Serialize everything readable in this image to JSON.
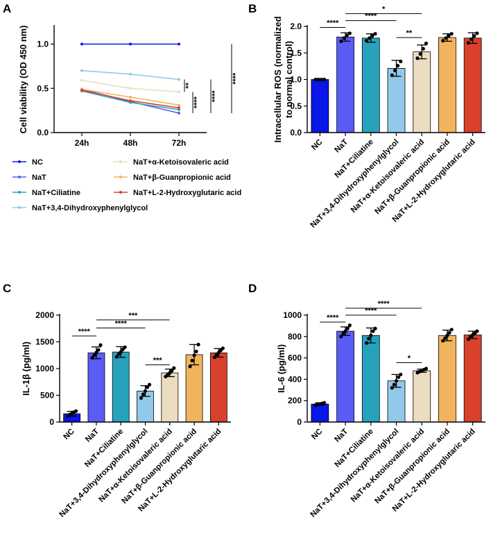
{
  "panels": {
    "A": "A",
    "B": "B",
    "C": "C",
    "D": "D"
  },
  "colors": {
    "NC": "#0a16e6",
    "NaT": "#5a5cf5",
    "NaT+Ciliatine": "#27a2bd",
    "NaT+3,4-Dihydroxyphenylglycol": "#92c9e9",
    "NaT+α-Ketoisovaleric acid": "#ecdcc0",
    "NaT+β-Guanpropionic acid": "#f2b35e",
    "NaT+L-2-Hydroxyglutaric acid": "#d8412c"
  },
  "chart_data": [
    {
      "panel": "A",
      "type": "line",
      "ylabel": "Cell viability (OD 450 nm)",
      "x": [
        "24h",
        "48h",
        "72h"
      ],
      "ylim": [
        0.0,
        1.2
      ],
      "yticks": [
        "0.0",
        "0.5",
        "1.0"
      ],
      "ytick_values": [
        0.0,
        0.5,
        1.0
      ],
      "series": [
        {
          "name": "NC",
          "values": [
            1.0,
            1.0,
            1.0
          ]
        },
        {
          "name": "NaT",
          "values": [
            0.49,
            0.35,
            0.22
          ]
        },
        {
          "name": "NaT+Ciliatine",
          "values": [
            0.47,
            0.34,
            0.26
          ]
        },
        {
          "name": "NaT+3,4-Dihydroxyphenylglycol",
          "values": [
            0.7,
            0.66,
            0.6
          ]
        },
        {
          "name": "NaT+α-Ketoisovaleric acid",
          "values": [
            0.59,
            0.5,
            0.46
          ]
        },
        {
          "name": "NaT+β-Guanpropionic acid",
          "values": [
            0.49,
            0.4,
            0.31
          ]
        },
        {
          "name": "NaT+L-2-Hydroxyglutaric acid",
          "values": [
            0.48,
            0.36,
            0.28
          ]
        }
      ],
      "legend_left": [
        "NC",
        "NaT",
        "NaT+Ciliatine",
        "NaT+3,4-Dihydroxyphenylglycol"
      ],
      "legend_right": [
        "NaT+α-Ketoisovaleric acid",
        "NaT+β-Guanpropionic acid",
        "NaT+L-2-Hydroxyglutaric acid"
      ],
      "significance": [
        {
          "from": 0.6,
          "to": 0.46,
          "label": "**"
        },
        {
          "from": 0.46,
          "to": 0.22,
          "label": "****"
        },
        {
          "from": 0.6,
          "to": 0.22,
          "label": "****"
        },
        {
          "from": 1.0,
          "to": 0.22,
          "label": "****"
        }
      ]
    },
    {
      "panel": "B",
      "type": "bar",
      "ylabel": "Intracellular ROS (normalized to normal control)",
      "ylabel_lines": [
        "Intracellular ROS (normalized",
        "to normal control)"
      ],
      "categories": [
        "NC",
        "NaT",
        "NaT+Ciliatine",
        "NaT+3,4-Dihydroxyphenylglycol",
        "NaT+α-Ketoisovaleric acid",
        "NaT+β-Guanpropionic acid",
        "NaT+L-2-Hydroxyglutaric acid"
      ],
      "values": [
        1.0,
        1.8,
        1.78,
        1.21,
        1.52,
        1.79,
        1.78
      ],
      "errors": [
        0.0,
        0.08,
        0.08,
        0.15,
        0.13,
        0.07,
        0.1
      ],
      "points": [
        [
          1.0,
          1.0,
          1.0,
          1.0
        ],
        [
          1.72,
          1.78,
          1.83,
          1.87
        ],
        [
          1.73,
          1.78,
          1.82,
          1.86
        ],
        [
          1.08,
          1.17,
          1.26,
          1.34
        ],
        [
          1.4,
          1.48,
          1.58,
          1.68
        ],
        [
          1.73,
          1.78,
          1.82,
          1.86
        ],
        [
          1.69,
          1.76,
          1.82,
          1.87
        ]
      ],
      "ylim": [
        0.0,
        2.0
      ],
      "yticks": [
        "0.0",
        "0.5",
        "1.0",
        "1.5",
        "2.0"
      ],
      "ytick_values": [
        0.0,
        0.5,
        1.0,
        1.5,
        2.0
      ],
      "significance": [
        {
          "a": 0,
          "b": 1,
          "label": "****",
          "y": 1.98
        },
        {
          "a": 1,
          "b": 3,
          "label": "****",
          "y": 2.11
        },
        {
          "a": 1,
          "b": 4,
          "label": "*",
          "y": 2.24
        },
        {
          "a": 3,
          "b": 4,
          "label": "**",
          "y": 1.79
        }
      ]
    },
    {
      "panel": "C",
      "type": "bar",
      "ylabel": "IL-1β (pg/ml)",
      "categories": [
        "NC",
        "NaT",
        "NaT+Ciliatine",
        "NaT+3,4-Dihydroxyphenylglycol",
        "NaT+α-Ketoisovaleric acid",
        "NaT+β-Guanpropionic acid",
        "NaT+L-2-Hydroxyglutaric acid"
      ],
      "values": [
        155,
        1295,
        1310,
        580,
        920,
        1260,
        1295
      ],
      "errors": [
        45,
        110,
        100,
        100,
        70,
        190,
        80
      ],
      "points": [
        [
          110,
          140,
          160,
          185,
          205
        ],
        [
          1200,
          1250,
          1300,
          1350,
          1440
        ],
        [
          1220,
          1270,
          1310,
          1360,
          1400
        ],
        [
          450,
          520,
          580,
          650,
          700
        ],
        [
          850,
          890,
          920,
          960,
          1010
        ],
        [
          1040,
          1150,
          1250,
          1320,
          1450
        ],
        [
          1210,
          1260,
          1300,
          1340,
          1380
        ]
      ],
      "ylim": [
        0,
        2000
      ],
      "yticks": [
        "0",
        "500",
        "1000",
        "1500",
        "2000"
      ],
      "ytick_values": [
        0,
        500,
        1000,
        1500,
        2000
      ],
      "significance": [
        {
          "a": 0,
          "b": 1,
          "label": "****",
          "y": 1610
        },
        {
          "a": 1,
          "b": 3,
          "label": "****",
          "y": 1760
        },
        {
          "a": 1,
          "b": 4,
          "label": "***",
          "y": 1910
        },
        {
          "a": 3,
          "b": 4,
          "label": "***",
          "y": 1070
        }
      ]
    },
    {
      "panel": "D",
      "type": "bar",
      "ylabel": "IL-6 (pg/ml)",
      "categories": [
        "NC",
        "NaT",
        "NaT+Ciliatine",
        "NaT+3,4-Dihydroxyphenylglycol",
        "NaT+α-Ketoisovaleric acid",
        "NaT+β-Guanpropionic acid",
        "NaT+L-2-Hydroxyglutaric acid"
      ],
      "values": [
        168,
        850,
        810,
        385,
        480,
        810,
        815
      ],
      "errors": [
        12,
        40,
        70,
        60,
        15,
        50,
        35
      ],
      "points": [
        [
          158,
          163,
          168,
          174,
          180
        ],
        [
          800,
          830,
          850,
          875,
          905
        ],
        [
          740,
          780,
          810,
          850,
          875
        ],
        [
          320,
          350,
          385,
          420,
          445
        ],
        [
          462,
          472,
          480,
          490,
          500
        ],
        [
          760,
          785,
          810,
          835,
          865
        ],
        [
          775,
          800,
          815,
          830,
          850
        ]
      ],
      "ylim": [
        0,
        1000
      ],
      "yticks": [
        "0",
        "200",
        "400",
        "600",
        "800",
        "1000"
      ],
      "ytick_values": [
        0,
        200,
        400,
        600,
        800,
        1000
      ],
      "significance": [
        {
          "a": 0,
          "b": 1,
          "label": "****",
          "y": 935
        },
        {
          "a": 1,
          "b": 3,
          "label": "****",
          "y": 1000
        },
        {
          "a": 1,
          "b": 4,
          "label": "****",
          "y": 1065
        },
        {
          "a": 3,
          "b": 4,
          "label": "*",
          "y": 555
        }
      ]
    }
  ]
}
